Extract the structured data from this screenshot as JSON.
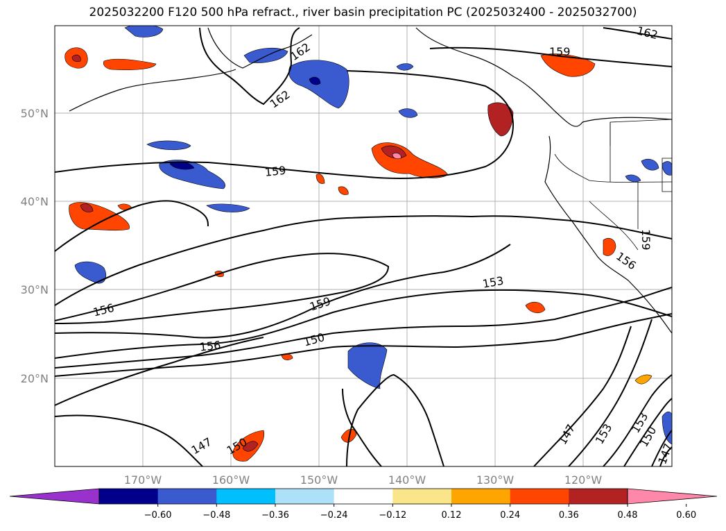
{
  "title": "2025032200 F120 500 hPa refract., river basin precipitation PC (2025032400 - 2025032700)",
  "lat_labels": [
    "50°N",
    "40°N",
    "30°N",
    "20°N"
  ],
  "lon_labels": [
    "170°W",
    "160°W",
    "150°W",
    "140°W",
    "130°W",
    "120°W"
  ],
  "contour_labels": [
    "162",
    "162",
    "162",
    "159",
    "159",
    "159",
    "159",
    "156",
    "156",
    "156",
    "153",
    "153",
    "153",
    "150",
    "150",
    "150",
    "147",
    "147",
    "147"
  ],
  "colorbar": {
    "colors": [
      "#9932CC",
      "#00008B",
      "#3A5BD0",
      "#00BFFF",
      "#ADE1FA",
      "#FFFFFF",
      "#FBE58A",
      "#FFA500",
      "#FF4500",
      "#B22222",
      "#FF88AA"
    ],
    "tick_labels": [
      "−0.60",
      "−0.48",
      "−0.36",
      "−0.24",
      "−0.12",
      "0.12",
      "0.24",
      "0.36",
      "0.48",
      "0.60"
    ]
  },
  "colors": {
    "axis_text": "#808080",
    "grid": "#b0b0b0",
    "contour": "#000000"
  }
}
